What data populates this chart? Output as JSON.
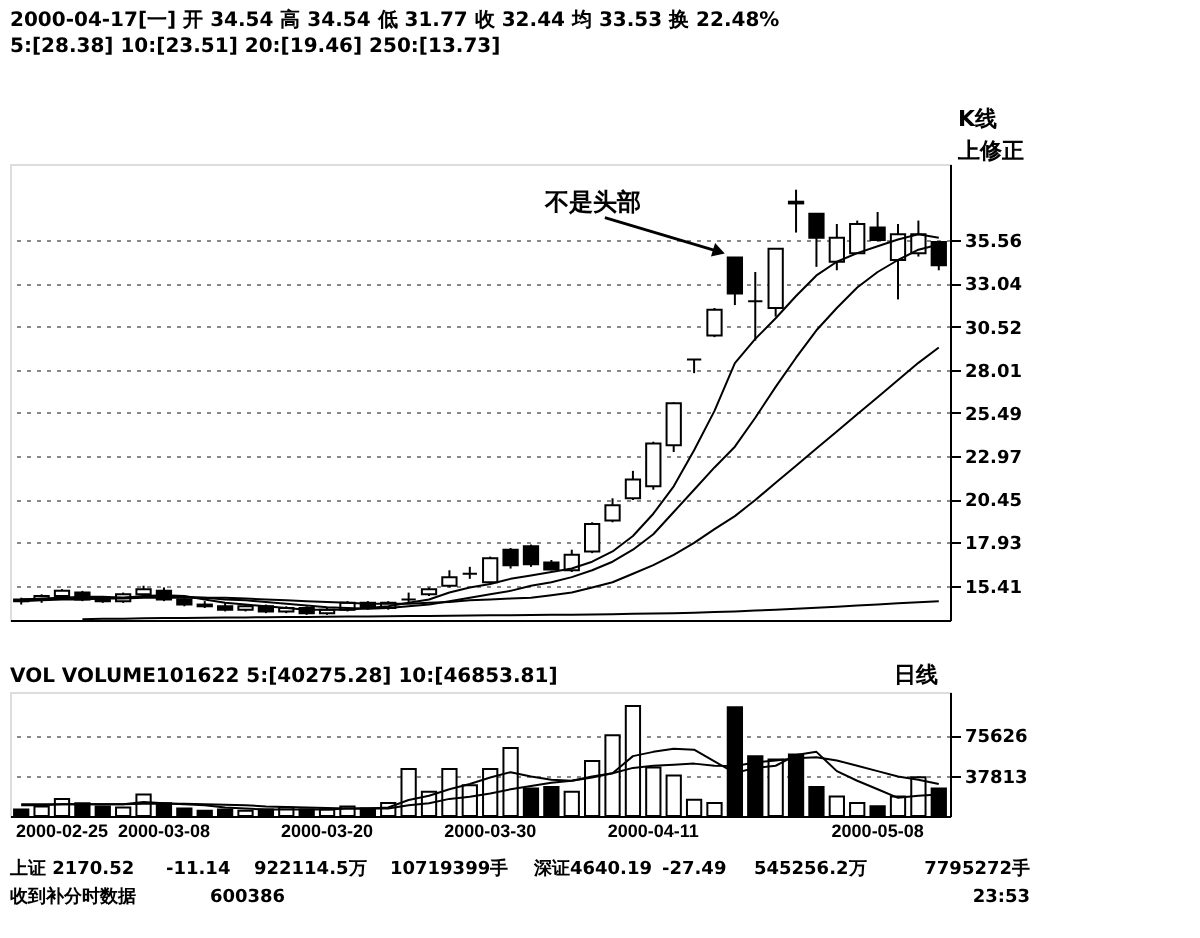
{
  "chart_data": [
    {
      "type": "candlestick",
      "title": "2000-04-17[一] 开 34.54 高 34.54 低 31.77 收 32.44 均 33.53 换 22.48%",
      "subtitle": "5:[28.38] 10:[23.51] 20:[19.46] 250:[13.73]",
      "categories": [
        null,
        null,
        null,
        null,
        null,
        null,
        null,
        null,
        null,
        null,
        null,
        null,
        null,
        null,
        null,
        null,
        null,
        null,
        null,
        null,
        null,
        null,
        null,
        null,
        null,
        null,
        null,
        null,
        null,
        null,
        null,
        null,
        null,
        null,
        null,
        null,
        null,
        null,
        null,
        null,
        null,
        null,
        null,
        null,
        null,
        null
      ],
      "ohlc": [
        [
          14.5,
          14.7,
          14.3,
          14.6
        ],
        [
          14.6,
          14.9,
          14.4,
          14.8
        ],
        [
          14.8,
          15.2,
          14.6,
          15.1
        ],
        [
          15.0,
          15.1,
          14.5,
          14.6
        ],
        [
          14.6,
          14.8,
          14.4,
          14.5
        ],
        [
          14.5,
          15.0,
          14.4,
          14.9
        ],
        [
          14.9,
          15.4,
          14.7,
          15.2
        ],
        [
          15.1,
          15.3,
          14.5,
          14.6
        ],
        [
          14.6,
          14.7,
          14.2,
          14.3
        ],
        [
          14.3,
          14.5,
          14.1,
          14.2
        ],
        [
          14.2,
          14.4,
          13.9,
          14.0
        ],
        [
          14.0,
          14.3,
          13.9,
          14.2
        ],
        [
          14.2,
          14.3,
          13.8,
          13.9
        ],
        [
          13.9,
          14.2,
          13.8,
          14.1
        ],
        [
          14.1,
          14.2,
          13.7,
          13.8
        ],
        [
          13.8,
          14.1,
          13.7,
          14.0
        ],
        [
          14.0,
          14.5,
          13.9,
          14.4
        ],
        [
          14.4,
          14.5,
          14.0,
          14.1
        ],
        [
          14.1,
          14.5,
          14.0,
          14.4
        ],
        [
          14.6,
          15.0,
          14.4,
          14.6
        ],
        [
          14.9,
          15.3,
          14.8,
          15.2
        ],
        [
          15.4,
          16.3,
          15.3,
          15.9
        ],
        [
          16.1,
          16.5,
          15.8,
          16.1
        ],
        [
          15.6,
          17.1,
          15.5,
          17.0
        ],
        [
          17.5,
          17.6,
          16.4,
          16.6
        ],
        [
          17.7,
          17.8,
          16.5,
          16.65
        ],
        [
          16.75,
          16.9,
          16.3,
          16.35
        ],
        [
          16.3,
          17.5,
          16.2,
          17.2
        ],
        [
          17.4,
          19.1,
          17.3,
          19.0
        ],
        [
          19.2,
          20.5,
          19.1,
          20.1
        ],
        [
          20.5,
          22.1,
          20.4,
          21.6
        ],
        [
          21.2,
          23.8,
          21.0,
          23.7
        ],
        [
          23.6,
          26.1,
          23.2,
          26.05
        ],
        [
          28.6,
          28.6,
          27.8,
          28.6
        ],
        [
          30.0,
          31.6,
          29.9,
          31.5
        ],
        [
          34.54,
          34.54,
          31.77,
          32.44
        ],
        [
          32.0,
          33.7,
          29.7,
          32.0
        ],
        [
          31.6,
          35.05,
          31.1,
          35.05
        ],
        [
          37.8,
          38.5,
          36.0,
          37.7
        ],
        [
          37.1,
          37.1,
          34.0,
          35.7
        ],
        [
          34.3,
          36.5,
          33.8,
          35.7
        ],
        [
          34.8,
          36.7,
          34.8,
          36.5
        ],
        [
          36.3,
          37.2,
          35.5,
          35.56
        ],
        [
          34.4,
          36.5,
          32.1,
          35.9
        ],
        [
          34.8,
          36.7,
          34.6,
          35.9
        ],
        [
          35.45,
          35.5,
          33.8,
          34.1
        ]
      ],
      "colors": [
        "#ffffff",
        "#ffffff",
        "#ffffff",
        "#000000",
        "#000000",
        "#ffffff",
        "#ffffff",
        "#000000",
        "#000000",
        "#000000",
        "#000000",
        "#ffffff",
        "#000000",
        "#ffffff",
        "#000000",
        "#ffffff",
        "#ffffff",
        "#000000",
        "#ffffff",
        "#000000",
        "#ffffff",
        "#ffffff",
        "#000000",
        "#ffffff",
        "#000000",
        "#000000",
        "#000000",
        "#ffffff",
        "#ffffff",
        "#ffffff",
        "#ffffff",
        "#ffffff",
        "#ffffff",
        "#000000",
        "#ffffff",
        "#000000",
        "#000000",
        "#ffffff",
        "#000000",
        "#000000",
        "#ffffff",
        "#ffffff",
        "#000000",
        "#ffffff",
        "#ffffff",
        "#000000"
      ],
      "series": [
        {
          "type": "line",
          "color": "#000000",
          "values": [
            14.6,
            14.65,
            14.7,
            14.75,
            14.75,
            14.7,
            14.8,
            14.85,
            14.8,
            14.6,
            14.4,
            14.3,
            14.2,
            14.1,
            14.0,
            14.0,
            14.0,
            14.1,
            14.2,
            14.4,
            14.6,
            15.0,
            15.3,
            15.5,
            15.8,
            16.0,
            16.2,
            16.4,
            16.8,
            17.4,
            18.3,
            19.6,
            21.2,
            23.3,
            25.6,
            28.38,
            29.8,
            31.0,
            32.3,
            33.5,
            34.3,
            34.8,
            35.2,
            35.6,
            35.9,
            35.7
          ]
        },
        {
          "type": "line",
          "color": "#000000",
          "values": [
            14.6,
            14.6,
            14.65,
            14.7,
            14.7,
            14.7,
            14.75,
            14.75,
            14.75,
            14.7,
            14.6,
            14.55,
            14.45,
            14.35,
            14.25,
            14.15,
            14.1,
            14.05,
            14.1,
            14.2,
            14.3,
            14.5,
            14.7,
            14.9,
            15.1,
            15.4,
            15.6,
            15.9,
            16.3,
            16.8,
            17.5,
            18.4,
            19.7,
            21.0,
            22.3,
            23.51,
            25.2,
            27.0,
            28.7,
            30.3,
            31.6,
            32.8,
            33.7,
            34.4,
            35.0,
            35.3
          ]
        },
        {
          "type": "line",
          "color": "#000000",
          "values": [
            14.5,
            14.55,
            14.6,
            14.6,
            14.65,
            14.65,
            14.7,
            14.7,
            14.7,
            14.7,
            14.7,
            14.65,
            14.6,
            14.55,
            14.5,
            14.45,
            14.4,
            14.35,
            14.35,
            14.35,
            14.4,
            14.45,
            14.55,
            14.6,
            14.65,
            14.7,
            14.85,
            15.0,
            15.3,
            15.6,
            16.1,
            16.6,
            17.2,
            17.9,
            18.7,
            19.46,
            20.4,
            21.4,
            22.4,
            23.4,
            24.4,
            25.4,
            26.4,
            27.4,
            28.4,
            29.3
          ]
        },
        {
          "type": "line",
          "color": "#000000",
          "values": [
            null,
            null,
            null,
            13.45,
            13.47,
            13.48,
            13.5,
            13.51,
            13.52,
            13.53,
            13.54,
            13.55,
            13.56,
            13.57,
            13.58,
            13.59,
            13.6,
            13.61,
            13.62,
            13.63,
            13.64,
            13.65,
            13.66,
            13.67,
            13.68,
            13.69,
            13.7,
            13.71,
            13.72,
            13.74,
            13.76,
            13.78,
            13.8,
            13.83,
            13.86,
            13.9,
            13.95,
            14.0,
            14.06,
            14.12,
            14.18,
            14.24,
            14.3,
            14.37,
            14.44,
            14.5
          ]
        }
      ],
      "ylim": [
        13.4,
        40.0
      ],
      "yticks": [
        {
          "value": 15.41,
          "label": "15.41"
        },
        {
          "value": 17.93,
          "label": "17.93"
        },
        {
          "value": 20.45,
          "label": "20.45"
        },
        {
          "value": 22.97,
          "label": "22.97"
        },
        {
          "value": 25.49,
          "label": "25.49"
        },
        {
          "value": 28.01,
          "label": "28.01"
        },
        {
          "value": 30.52,
          "label": "30.52"
        },
        {
          "value": 33.04,
          "label": "33.04"
        },
        {
          "value": 35.56,
          "label": "35.56"
        }
      ],
      "grid": "y",
      "tick_labels": "y",
      "annotations": [
        "K线",
        "上修正",
        "不是头部"
      ]
    },
    {
      "type": "bar",
      "categories": [
        null,
        null,
        "2000-02-25",
        null,
        null,
        null,
        null,
        "2000-03-08",
        null,
        null,
        null,
        null,
        null,
        null,
        null,
        "2000-03-20",
        null,
        null,
        null,
        null,
        null,
        null,
        null,
        "2000-03-30",
        null,
        null,
        null,
        null,
        null,
        null,
        null,
        "2000-04-11",
        null,
        null,
        null,
        null,
        null,
        null,
        null,
        null,
        null,
        null,
        "2000-05-08",
        null,
        null,
        null
      ],
      "series": [
        {
          "type": "bar",
          "colors": [
            "#000000",
            "#ffffff",
            "#ffffff",
            "#000000",
            "#000000",
            "#ffffff",
            "#ffffff",
            "#000000",
            "#000000",
            "#000000",
            "#000000",
            "#ffffff",
            "#000000",
            "#ffffff",
            "#000000",
            "#ffffff",
            "#ffffff",
            "#000000",
            "#ffffff",
            "#ffffff",
            "#ffffff",
            "#ffffff",
            "#ffffff",
            "#ffffff",
            "#ffffff",
            "#000000",
            "#000000",
            "#ffffff",
            "#ffffff",
            "#ffffff",
            "#ffffff",
            "#ffffff",
            "#ffffff",
            "#ffffff",
            "#ffffff",
            "#000000",
            "#000000",
            "#ffffff",
            "#000000",
            "#000000",
            "#ffffff",
            "#ffffff",
            "#000000",
            "#ffffff",
            "#ffffff",
            "#000000"
          ],
          "values": [
            6000,
            9000,
            16000,
            12000,
            9000,
            8000,
            20000,
            12000,
            7000,
            5000,
            6000,
            5000,
            6000,
            8000,
            6000,
            6000,
            9000,
            7000,
            12100,
            43900,
            22700,
            43900,
            28700,
            43900,
            63500,
            25700,
            27200,
            22700,
            51400,
            75600,
            102900,
            45400,
            37800,
            15100,
            12100,
            101622,
            56000,
            52900,
            57500,
            27200,
            18200,
            12100,
            9100,
            18200,
            36300,
            25700
          ]
        },
        {
          "type": "line",
          "color": "#000000",
          "values": [
            10000,
            10000,
            11000,
            11000,
            11000,
            11000,
            13000,
            12000,
            11000,
            10000,
            8000,
            7000,
            6000,
            6000,
            6000,
            6000,
            7000,
            7000,
            8000,
            15000,
            19000,
            25000,
            30000,
            36000,
            41000,
            37000,
            34000,
            33000,
            36000,
            40000,
            56000,
            60000,
            63000,
            62000,
            51000,
            40275,
            45000,
            47000,
            57000,
            60000,
            42000,
            33000,
            25000,
            17000,
            19000,
            20000
          ]
        },
        {
          "type": "line",
          "color": "#000000",
          "values": [
            11000,
            11000,
            11000,
            11000,
            11000,
            11000,
            11500,
            11500,
            11500,
            11000,
            10500,
            10000,
            9000,
            8500,
            8000,
            7500,
            7000,
            7000,
            7000,
            10000,
            12000,
            16000,
            18000,
            21000,
            25000,
            28000,
            31000,
            33000,
            37000,
            40000,
            45000,
            47000,
            48000,
            49000,
            47000,
            46853,
            50000,
            52000,
            54000,
            55000,
            52000,
            47000,
            42000,
            37000,
            34000,
            30000
          ]
        }
      ],
      "ylim": [
        0,
        116000
      ],
      "yticks": [
        {
          "value": 37813,
          "label": "37813"
        },
        {
          "value": 75626,
          "label": "75626"
        }
      ],
      "grid": "y",
      "annotations": [
        "VOL VOLUME101622 5:[40275.28] 10:[46853.81]",
        "日线",
        "上证 2170.52",
        "-11.14",
        "922114.5万",
        "10719399手",
        "深证4640.19",
        "-27.49",
        "545256.2万",
        "7795272手",
        "收到补分时数据",
        "600386",
        "23:53"
      ]
    }
  ]
}
